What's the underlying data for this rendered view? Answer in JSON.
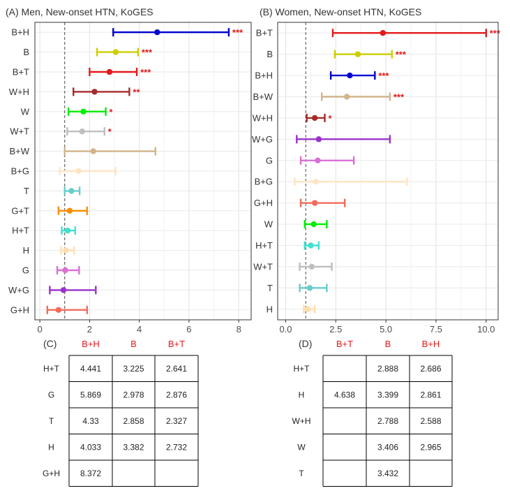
{
  "chart_data": [
    {
      "type": "forest",
      "title": "(A) Men, New-onset HTN, KoGES",
      "xlim": [
        -0.2,
        8.5
      ],
      "xticks": [
        0,
        2,
        4,
        6,
        8
      ],
      "reference_line": 1,
      "grid": true,
      "rows": [
        {
          "label": "B+H",
          "est": 4.72,
          "lo": 2.95,
          "hi": 7.6,
          "color": "#0000cd",
          "sig": "***"
        },
        {
          "label": "B",
          "est": 3.05,
          "lo": 2.3,
          "hi": 3.95,
          "color": "#cdcd00",
          "sig": "***"
        },
        {
          "label": "B+T",
          "est": 2.8,
          "lo": 2.0,
          "hi": 3.9,
          "color": "#e31a1c",
          "sig": "***"
        },
        {
          "label": "W+H",
          "est": 2.2,
          "lo": 1.35,
          "hi": 3.6,
          "color": "#a52a2a",
          "sig": "**"
        },
        {
          "label": "W",
          "est": 1.75,
          "lo": 1.15,
          "hi": 2.65,
          "color": "#00ee00",
          "sig": "*"
        },
        {
          "label": "W+T",
          "est": 1.7,
          "lo": 1.1,
          "hi": 2.6,
          "color": "#bebebe",
          "sig": "*"
        },
        {
          "label": "B+W",
          "est": 2.15,
          "lo": 1.0,
          "hi": 4.65,
          "color": "#d2b48c",
          "sig": ""
        },
        {
          "label": "B+G",
          "est": 1.55,
          "lo": 0.8,
          "hi": 3.05,
          "color": "#ffe4c4",
          "sig": ""
        },
        {
          "label": "T",
          "est": 1.27,
          "lo": 1.0,
          "hi": 1.6,
          "color": "#66cdcd",
          "sig": ""
        },
        {
          "label": "G+T",
          "est": 1.2,
          "lo": 0.75,
          "hi": 1.9,
          "color": "#ff8c00",
          "sig": ""
        },
        {
          "label": "H+T",
          "est": 1.12,
          "lo": 0.88,
          "hi": 1.42,
          "color": "#40e0d0",
          "sig": ""
        },
        {
          "label": "H",
          "est": 1.05,
          "lo": 0.85,
          "hi": 1.38,
          "color": "#ffdead",
          "sig": ""
        },
        {
          "label": "G",
          "est": 1.02,
          "lo": 0.7,
          "hi": 1.58,
          "color": "#da70d6",
          "sig": ""
        },
        {
          "label": "W+G",
          "est": 0.95,
          "lo": 0.4,
          "hi": 2.25,
          "color": "#9932cc",
          "sig": ""
        },
        {
          "label": "G+H",
          "est": 0.75,
          "lo": 0.3,
          "hi": 1.9,
          "color": "#f26b5b",
          "sig": ""
        }
      ]
    },
    {
      "type": "forest",
      "title": "(B) Women, New-onset HTN, KoGES",
      "xlim": [
        -0.4,
        10.6
      ],
      "xticks": [
        0,
        2.5,
        5,
        7.5,
        10
      ],
      "xtick_labels": [
        "0.0",
        "2.5",
        "5.0",
        "7.5",
        "10.0"
      ],
      "reference_line": 1,
      "grid": true,
      "rows": [
        {
          "label": "B+T",
          "est": 4.85,
          "lo": 2.35,
          "hi": 10.0,
          "color": "#e31a1c",
          "sig": "***"
        },
        {
          "label": "B",
          "est": 3.6,
          "lo": 2.45,
          "hi": 5.3,
          "color": "#cdcd00",
          "sig": "***"
        },
        {
          "label": "B+H",
          "est": 3.2,
          "lo": 2.25,
          "hi": 4.45,
          "color": "#0000cd",
          "sig": "***"
        },
        {
          "label": "B+W",
          "est": 3.05,
          "lo": 1.8,
          "hi": 5.2,
          "color": "#d2b48c",
          "sig": "***"
        },
        {
          "label": "W+H",
          "est": 1.45,
          "lo": 1.05,
          "hi": 1.95,
          "color": "#a52a2a",
          "sig": "*"
        },
        {
          "label": "W+G",
          "est": 1.65,
          "lo": 0.55,
          "hi": 5.2,
          "color": "#9932cc",
          "sig": ""
        },
        {
          "label": "G",
          "est": 1.6,
          "lo": 0.75,
          "hi": 3.4,
          "color": "#da70d6",
          "sig": ""
        },
        {
          "label": "B+G",
          "est": 1.5,
          "lo": 0.45,
          "hi": 6.05,
          "color": "#ffe4c4",
          "sig": ""
        },
        {
          "label": "G+H",
          "est": 1.45,
          "lo": 0.75,
          "hi": 2.95,
          "color": "#f26b5b",
          "sig": ""
        },
        {
          "label": "W",
          "est": 1.4,
          "lo": 0.95,
          "hi": 2.05,
          "color": "#00ee00",
          "sig": ""
        },
        {
          "label": "H+T",
          "est": 1.25,
          "lo": 0.95,
          "hi": 1.65,
          "color": "#40e0d0",
          "sig": ""
        },
        {
          "label": "W+T",
          "est": 1.3,
          "lo": 0.7,
          "hi": 2.3,
          "color": "#bebebe",
          "sig": ""
        },
        {
          "label": "T",
          "est": 1.2,
          "lo": 0.7,
          "hi": 2.05,
          "color": "#66cdcd",
          "sig": ""
        },
        {
          "label": "H",
          "est": 1.1,
          "lo": 0.9,
          "hi": 1.45,
          "color": "#ffdead",
          "sig": ""
        }
      ]
    },
    {
      "type": "table",
      "title": "(C)",
      "columns": [
        "B+H",
        "B",
        "B+T"
      ],
      "rows": [
        {
          "label": "H+T",
          "cells": [
            "4.441",
            "3.225",
            "2.641"
          ]
        },
        {
          "label": "G",
          "cells": [
            "5.869",
            "2.978",
            "2.876"
          ]
        },
        {
          "label": "T",
          "cells": [
            "4.33",
            "2.858",
            "2.327"
          ]
        },
        {
          "label": "H",
          "cells": [
            "4.033",
            "3.382",
            "2.732"
          ]
        },
        {
          "label": "G+H",
          "cells": [
            "8.372",
            "",
            ""
          ]
        }
      ]
    },
    {
      "type": "table",
      "title": "(D)",
      "columns": [
        "B+T",
        "B",
        "B+H"
      ],
      "rows": [
        {
          "label": "H+T",
          "cells": [
            "",
            "2.888",
            "2.686"
          ]
        },
        {
          "label": "H",
          "cells": [
            "4.638",
            "3.399",
            "2.861"
          ]
        },
        {
          "label": "W+H",
          "cells": [
            "",
            "2.788",
            "2.588"
          ]
        },
        {
          "label": "W",
          "cells": [
            "",
            "3.406",
            "2.965"
          ]
        },
        {
          "label": "T",
          "cells": [
            "",
            "3.432",
            ""
          ]
        }
      ]
    }
  ]
}
